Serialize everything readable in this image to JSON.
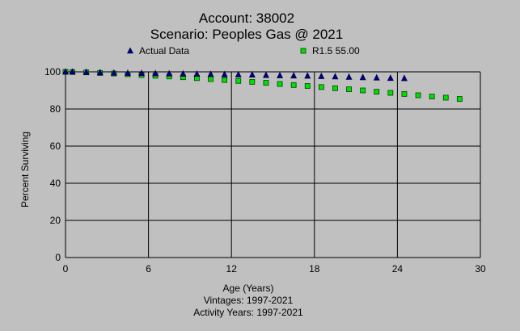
{
  "chart_data": {
    "type": "scatter",
    "title": "Account: 38002",
    "subtitle": "Scenario: Peoples Gas @ 2021",
    "xlabel": "Age (Years)",
    "ylabel": "Percent Surviving",
    "footer_lines": [
      "Vintages: 1997-2021",
      "Activity Years: 1997-2021"
    ],
    "xlim": [
      0,
      30
    ],
    "ylim": [
      0,
      100
    ],
    "x_ticks": [
      0,
      6,
      12,
      18,
      24,
      30
    ],
    "y_ticks": [
      0,
      20,
      40,
      60,
      80,
      100
    ],
    "grid": true,
    "legend_position": "top",
    "series": [
      {
        "name": "Actual Data",
        "marker": "triangle",
        "color": "#000080",
        "x": [
          0,
          0.5,
          1.5,
          2.5,
          3.5,
          4.5,
          5.5,
          6.5,
          7.5,
          8.5,
          9.5,
          10.5,
          11.5,
          12.5,
          13.5,
          14.5,
          15.5,
          16.5,
          17.5,
          18.5,
          19.5,
          20.5,
          21.5,
          22.5,
          23.5,
          24.5
        ],
        "y": [
          100,
          100,
          99.8,
          99.6,
          99.4,
          99.3,
          99.2,
          99.1,
          99.0,
          98.9,
          98.8,
          98.7,
          98.6,
          98.5,
          98.4,
          98.2,
          98.0,
          97.9,
          97.8,
          97.6,
          97.4,
          97.2,
          97.0,
          96.8,
          96.6,
          96.5
        ]
      },
      {
        "name": "R1.5 55.00",
        "marker": "square",
        "color": "#00e000",
        "x": [
          0,
          0.5,
          1.5,
          2.5,
          3.5,
          4.5,
          5.5,
          6.5,
          7.5,
          8.5,
          9.5,
          10.5,
          11.5,
          12.5,
          13.5,
          14.5,
          15.5,
          16.5,
          17.5,
          18.5,
          19.5,
          20.5,
          21.5,
          22.5,
          23.5,
          24.5,
          25.5,
          26.5,
          27.5,
          28.5
        ],
        "y": [
          100,
          99.9,
          99.7,
          99.4,
          99.1,
          98.7,
          98.3,
          97.9,
          97.5,
          97.1,
          96.6,
          96.1,
          95.6,
          95.1,
          94.6,
          94.1,
          93.5,
          92.9,
          92.4,
          91.8,
          91.2,
          90.6,
          90.0,
          89.3,
          88.7,
          88.1,
          87.4,
          86.7,
          86.1,
          85.4
        ]
      }
    ]
  }
}
